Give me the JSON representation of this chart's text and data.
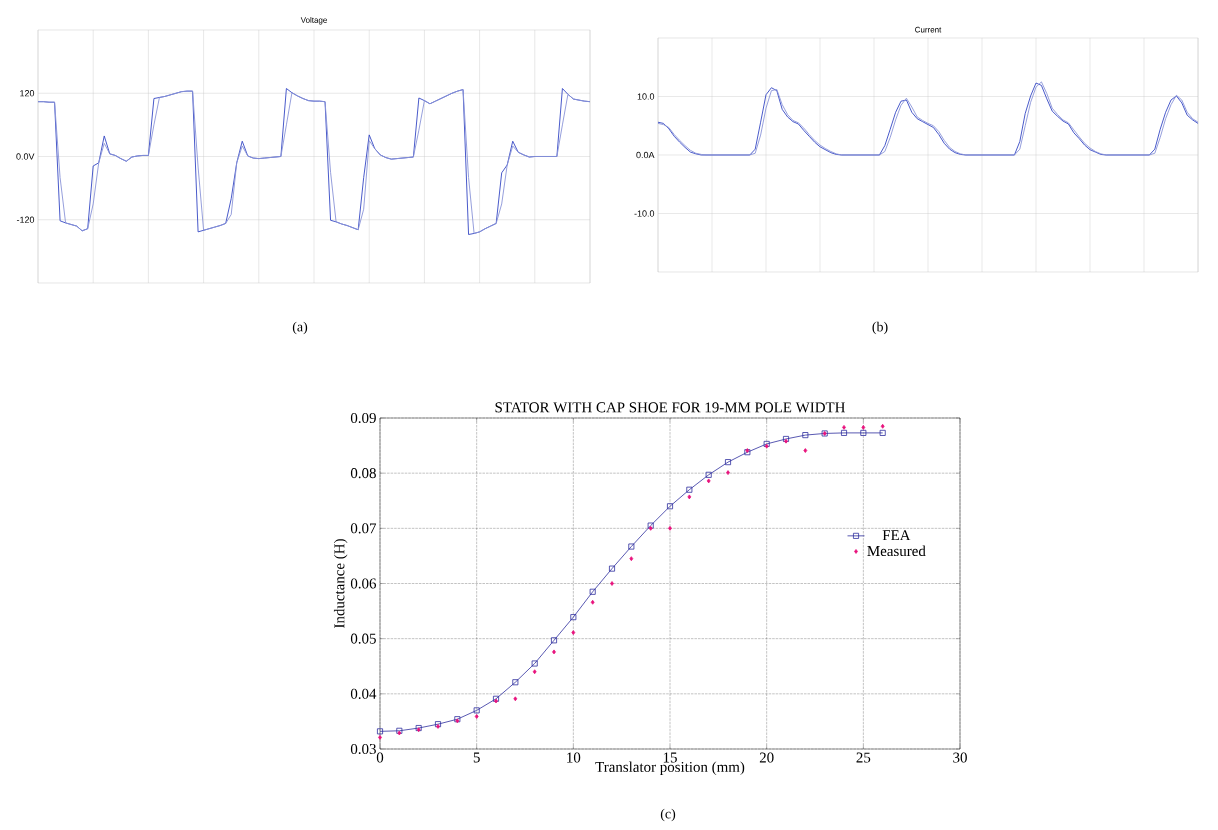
{
  "chart_data": [
    {
      "type": "line",
      "title": "Voltage",
      "annotations": [
        "(a)"
      ],
      "categories": [
        null,
        null,
        null,
        null,
        null,
        null,
        null,
        null,
        null,
        null,
        null,
        null,
        null,
        null,
        null,
        null,
        null,
        null,
        null,
        null,
        null,
        null,
        null,
        null,
        null,
        null,
        null,
        null,
        null,
        null,
        null,
        null,
        null,
        null,
        null,
        null,
        null,
        null,
        null,
        null,
        null,
        null,
        null,
        null,
        null,
        null,
        null,
        null,
        null,
        null,
        null,
        null,
        null,
        null,
        null,
        null,
        null,
        null,
        null,
        null,
        null,
        null,
        null,
        null,
        null,
        null,
        null,
        null,
        null,
        null,
        null,
        null,
        null,
        null,
        null,
        null,
        null,
        null,
        null,
        null,
        null,
        null,
        null,
        null,
        null,
        null,
        null,
        null,
        null,
        null,
        null,
        null,
        null,
        null,
        null,
        null,
        null,
        null,
        null,
        null,
        null
      ],
      "ylim": [
        -240,
        240
      ],
      "yticks": [
        -120,
        {
          "value": 0,
          "label": "0.0V"
        },
        120
      ],
      "grid": true,
      "series": [
        {
          "color": "#3347c4",
          "values": [
            104,
            104,
            103,
            103,
            -122,
            -126,
            -129,
            -132,
            -141,
            -137,
            -18,
            -12,
            39,
            5,
            2,
            -4,
            -9,
            -1,
            1,
            2,
            2,
            110,
            112,
            114,
            117,
            120,
            123,
            124,
            124,
            -143,
            -140,
            -137,
            -134,
            -131,
            -127,
            -80,
            -12,
            29,
            1,
            -3,
            -4,
            -3,
            -2,
            -1,
            0,
            129,
            121,
            115,
            110,
            106,
            105,
            105,
            104,
            -121,
            -124,
            -128,
            -131,
            -135,
            -139,
            -40,
            41,
            15,
            3,
            -2,
            -5,
            -4,
            -3,
            -2,
            -1,
            111,
            106,
            100,
            105,
            110,
            115,
            120,
            124,
            127,
            -148,
            -146,
            -143,
            -137,
            -132,
            -127,
            -31,
            -16,
            29,
            8,
            3,
            -1,
            0,
            0,
            0,
            0,
            0,
            129,
            118,
            109,
            107,
            105,
            104
          ]
        },
        {
          "color": "#8a94d8",
          "values": [
            104,
            104,
            103,
            103,
            -40,
            -126,
            -129,
            -132,
            -141,
            -137,
            -90,
            -12,
            25,
            5,
            2,
            -4,
            -9,
            -1,
            1,
            2,
            2,
            60,
            112,
            114,
            117,
            120,
            123,
            124,
            124,
            -20,
            -140,
            -137,
            -134,
            -131,
            -127,
            -110,
            -12,
            20,
            1,
            -3,
            -4,
            -3,
            -2,
            -1,
            0,
            60,
            121,
            115,
            110,
            106,
            105,
            105,
            104,
            -30,
            -124,
            -128,
            -131,
            -135,
            -139,
            -100,
            30,
            15,
            3,
            -2,
            -5,
            -4,
            -3,
            -2,
            -1,
            50,
            106,
            100,
            105,
            110,
            115,
            120,
            124,
            127,
            -40,
            -146,
            -143,
            -137,
            -132,
            -127,
            -90,
            -16,
            20,
            8,
            3,
            -1,
            0,
            0,
            0,
            0,
            0,
            60,
            118,
            109,
            107,
            105,
            104
          ]
        }
      ]
    },
    {
      "type": "line",
      "title": "Current",
      "annotations": [
        "(b)"
      ],
      "categories": [
        null,
        null,
        null,
        null,
        null,
        null,
        null,
        null,
        null,
        null,
        null,
        null,
        null,
        null,
        null,
        null,
        null,
        null,
        null,
        null,
        null,
        null,
        null,
        null,
        null,
        null,
        null,
        null,
        null,
        null,
        null,
        null,
        null,
        null,
        null,
        null,
        null,
        null,
        null,
        null,
        null,
        null,
        null,
        null,
        null,
        null,
        null,
        null,
        null,
        null,
        null,
        null,
        null,
        null,
        null,
        null,
        null,
        null,
        null,
        null,
        null,
        null,
        null,
        null,
        null,
        null,
        null,
        null,
        null,
        null,
        null,
        null,
        null,
        null,
        null,
        null,
        null,
        null,
        null,
        null,
        null,
        null,
        null,
        null,
        null,
        null,
        null,
        null,
        null,
        null,
        null,
        null,
        null,
        null,
        null,
        null,
        null,
        null,
        null,
        null,
        null
      ],
      "ylim": [
        -20,
        20
      ],
      "yticks": [
        {
          "value": -10,
          "label": "-10.0"
        },
        {
          "value": 0,
          "label": "0.0A"
        },
        {
          "value": 10,
          "label": "10.0"
        }
      ],
      "grid": true,
      "series": [
        {
          "color": "#3347c4",
          "values": [
            5.6,
            5.4,
            4.5,
            3.2,
            2.2,
            1.3,
            0.5,
            0.2,
            0,
            0,
            0,
            0,
            0,
            0,
            0,
            0,
            0,
            0,
            1.0,
            5.6,
            10.3,
            11.5,
            11.0,
            7.8,
            6.5,
            5.7,
            5.3,
            4.2,
            3.2,
            2.2,
            1.4,
            0.9,
            0.4,
            0.1,
            0,
            0,
            0,
            0,
            0,
            0,
            0,
            0,
            1.6,
            4.4,
            7.3,
            9.2,
            9.4,
            7.3,
            6.2,
            5.7,
            5.2,
            4.7,
            3.5,
            2.0,
            1.0,
            0.4,
            0.1,
            0,
            0,
            0,
            0,
            0,
            0,
            0,
            0,
            0,
            0,
            2.3,
            7.1,
            10.1,
            12.3,
            11.9,
            9.6,
            7.5,
            6.6,
            5.8,
            5.3,
            3.8,
            2.8,
            1.7,
            0.9,
            0.5,
            0.1,
            0,
            0,
            0,
            0,
            0,
            0,
            0,
            0,
            0,
            1.0,
            4.4,
            7.3,
            9.4,
            10.1,
            8.9,
            6.8,
            6.0,
            5.4
          ]
        },
        {
          "color": "#8a94d8",
          "values": [
            5.4,
            5.2,
            4.7,
            3.5,
            2.5,
            1.6,
            0.8,
            0.3,
            0.1,
            0,
            0,
            0,
            0,
            0,
            0,
            0,
            0,
            0,
            0.3,
            3.4,
            8.0,
            11.0,
            11.2,
            8.6,
            6.9,
            5.9,
            5.5,
            4.6,
            3.5,
            2.5,
            1.7,
            1.1,
            0.6,
            0.2,
            0,
            0,
            0,
            0,
            0,
            0,
            0,
            0,
            0.6,
            3.0,
            6.0,
            8.5,
            9.7,
            8.2,
            6.5,
            5.9,
            5.4,
            5.0,
            4.0,
            2.5,
            1.3,
            0.6,
            0.2,
            0,
            0,
            0,
            0,
            0,
            0,
            0,
            0,
            0,
            0,
            1.0,
            5.0,
            9.0,
            11.6,
            12.5,
            10.5,
            8.0,
            6.9,
            6.0,
            5.5,
            4.3,
            3.1,
            2.0,
            1.2,
            0.6,
            0.2,
            0,
            0,
            0,
            0,
            0,
            0,
            0,
            0,
            0,
            0.3,
            3.0,
            6.2,
            8.6,
            10.2,
            9.4,
            7.3,
            6.2,
            5.6
          ]
        }
      ]
    },
    {
      "type": "line",
      "title": "STATOR WITH CAP SHOE FOR 19-MM POLE WIDTH",
      "xlabel": "Translator position (mm)",
      "ylabel": "Inductance (H)",
      "annotations": [
        "(c)"
      ],
      "xlim": [
        0,
        30
      ],
      "xticks": [
        0,
        5,
        10,
        15,
        20,
        25,
        30
      ],
      "ylim": [
        0.03,
        0.09
      ],
      "yticks": [
        0.03,
        0.04,
        0.05,
        0.06,
        0.07,
        0.08,
        0.09
      ],
      "grid": true,
      "legend": "right",
      "series": [
        {
          "name": "FEA",
          "type": "line",
          "marker": "square",
          "color": "#2e2e9e",
          "x": [
            0,
            1,
            2,
            3,
            4,
            5,
            6,
            7,
            8,
            9,
            10,
            11,
            12,
            13,
            14,
            15,
            16,
            17,
            18,
            19,
            20,
            21,
            22,
            23,
            24,
            25,
            26
          ],
          "values": [
            0.0332,
            0.0333,
            0.0338,
            0.0345,
            0.0354,
            0.037,
            0.0391,
            0.0421,
            0.0455,
            0.0497,
            0.0539,
            0.0585,
            0.0627,
            0.0667,
            0.0705,
            0.074,
            0.077,
            0.0797,
            0.082,
            0.0838,
            0.0853,
            0.0862,
            0.0869,
            0.0872,
            0.0873,
            0.0873,
            0.0873
          ]
        },
        {
          "name": "Measured",
          "type": "scatter",
          "marker": "diamond",
          "color": "#e8127c",
          "x": [
            0,
            1,
            2,
            3,
            4,
            5,
            6,
            7,
            8,
            9,
            10,
            11,
            12,
            13,
            14,
            15,
            16,
            17,
            18,
            19,
            20,
            21,
            22,
            23,
            24,
            25,
            26
          ],
          "values": [
            0.0321,
            0.0329,
            0.0335,
            0.0341,
            0.0351,
            0.0359,
            0.0387,
            0.0391,
            0.044,
            0.0476,
            0.0511,
            0.0566,
            0.06,
            0.0645,
            0.07,
            0.07,
            0.0757,
            0.0786,
            0.0801,
            0.0841,
            0.0849,
            0.0858,
            0.0841,
            0.0872,
            0.0883,
            0.0883,
            0.0885
          ]
        }
      ]
    }
  ]
}
